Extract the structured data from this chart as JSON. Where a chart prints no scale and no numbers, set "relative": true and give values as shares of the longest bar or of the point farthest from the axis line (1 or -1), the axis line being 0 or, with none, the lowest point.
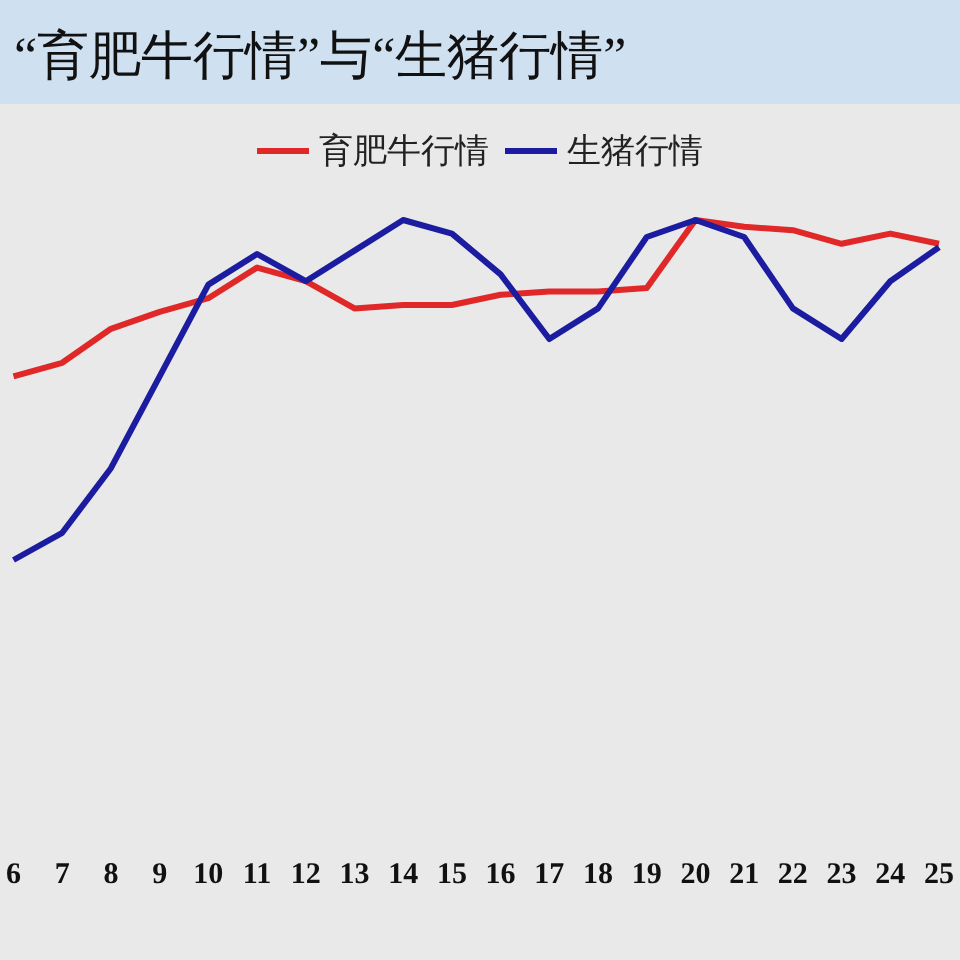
{
  "chart_data": {
    "type": "line",
    "title": "“育肥牛行情”与“生猪行情”",
    "relative": true,
    "legend": "top",
    "categories": [
      "6",
      "7",
      "8",
      "9",
      "10",
      "11",
      "12",
      "13",
      "14",
      "15",
      "16",
      "17",
      "18",
      "19",
      "20",
      "21",
      "22",
      "23",
      "24",
      "25"
    ],
    "series": [
      {
        "name": "育肥牛行情",
        "color": "#e02828",
        "values": [
          0.54,
          0.58,
          0.68,
          0.73,
          0.77,
          0.86,
          0.82,
          0.74,
          0.75,
          0.75,
          0.78,
          0.79,
          0.79,
          0.8,
          1.0,
          0.98,
          0.97,
          0.93,
          0.96,
          0.93
        ]
      },
      {
        "name": "生猪行情",
        "color": "#1c1ca0",
        "values": [
          0,
          0.08,
          0.27,
          0.54,
          0.81,
          0.9,
          0.82,
          0.91,
          1.0,
          0.96,
          0.84,
          0.65,
          0.74,
          0.95,
          1.0,
          0.95,
          0.74,
          0.65,
          0.82,
          0.92
        ]
      }
    ]
  }
}
